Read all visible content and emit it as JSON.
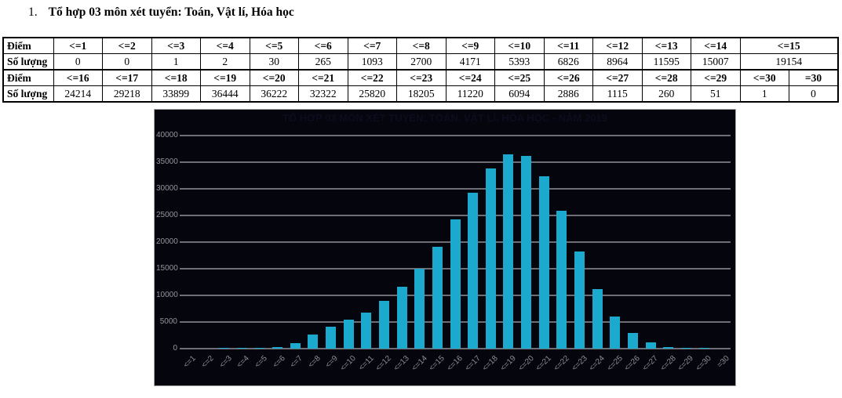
{
  "page": {
    "heading_number": "1.",
    "heading_text": "Tổ hợp 03 môn xét tuyển: Toán, Vật lí, Hóa học"
  },
  "table": {
    "rows": [
      {
        "cells": [
          {
            "text": "Điểm",
            "label": true
          },
          {
            "text": "<=1",
            "header": true
          },
          {
            "text": "<=2",
            "header": true
          },
          {
            "text": "<=3",
            "header": true
          },
          {
            "text": "<=4",
            "header": true
          },
          {
            "text": "<=5",
            "header": true
          },
          {
            "text": "<=6",
            "header": true
          },
          {
            "text": "<=7",
            "header": true
          },
          {
            "text": "<=8",
            "header": true
          },
          {
            "text": "<=9",
            "header": true
          },
          {
            "text": "<=10",
            "header": true
          },
          {
            "text": "<=11",
            "header": true
          },
          {
            "text": "<=12",
            "header": true
          },
          {
            "text": "<=13",
            "header": true
          },
          {
            "text": "<=14",
            "header": true
          },
          {
            "text": "<=15",
            "header": true,
            "colspan": 2
          }
        ]
      },
      {
        "cells": [
          {
            "text": "Số lượng",
            "label": true
          },
          {
            "text": "0"
          },
          {
            "text": "0"
          },
          {
            "text": "1"
          },
          {
            "text": "2"
          },
          {
            "text": "30"
          },
          {
            "text": "265"
          },
          {
            "text": "1093"
          },
          {
            "text": "2700"
          },
          {
            "text": "4171"
          },
          {
            "text": "5393"
          },
          {
            "text": "6826"
          },
          {
            "text": "8964"
          },
          {
            "text": "11595"
          },
          {
            "text": "15007"
          },
          {
            "text": "19154",
            "colspan": 2
          }
        ]
      },
      {
        "cells": [
          {
            "text": "Điểm",
            "label": true
          },
          {
            "text": "<=16",
            "header": true
          },
          {
            "text": "<=17",
            "header": true
          },
          {
            "text": "<=18",
            "header": true
          },
          {
            "text": "<=19",
            "header": true
          },
          {
            "text": "<=20",
            "header": true
          },
          {
            "text": "<=21",
            "header": true
          },
          {
            "text": "<=22",
            "header": true
          },
          {
            "text": "<=23",
            "header": true
          },
          {
            "text": "<=24",
            "header": true
          },
          {
            "text": "<=25",
            "header": true
          },
          {
            "text": "<=26",
            "header": true
          },
          {
            "text": "<=27",
            "header": true
          },
          {
            "text": "<=28",
            "header": true
          },
          {
            "text": "<=29",
            "header": true
          },
          {
            "text": "<=30",
            "header": true
          },
          {
            "text": "=30",
            "header": true
          }
        ]
      },
      {
        "cells": [
          {
            "text": "Số lượng",
            "label": true
          },
          {
            "text": "24214"
          },
          {
            "text": "29218"
          },
          {
            "text": "33899"
          },
          {
            "text": "36444"
          },
          {
            "text": "36222"
          },
          {
            "text": "32322"
          },
          {
            "text": "25820"
          },
          {
            "text": "18205"
          },
          {
            "text": "11220"
          },
          {
            "text": "6094"
          },
          {
            "text": "2886"
          },
          {
            "text": "1115"
          },
          {
            "text": "260"
          },
          {
            "text": "51"
          },
          {
            "text": "1"
          },
          {
            "text": "0"
          }
        ]
      }
    ]
  },
  "chart_data": {
    "type": "bar",
    "title": "TỔ HỢP 03 MÔN XÉT TUYỂN: TOÁN, VẬT LÍ, HÓA HỌC - NĂM 2019",
    "categories": [
      "<=1",
      "<=2",
      "<=3",
      "<=4",
      "<=5",
      "<=6",
      "<=7",
      "<=8",
      "<=9",
      "<=10",
      "<=11",
      "<=12",
      "<=13",
      "<=14",
      "<=15",
      "<=16",
      "<=17",
      "<=18",
      "<=19",
      "<=20",
      "<=21",
      "<=22",
      "<=23",
      "<=24",
      "<=25",
      "<=26",
      "<=27",
      "<=28",
      "<=29",
      "<=30",
      "=30"
    ],
    "values": [
      0,
      0,
      1,
      2,
      30,
      265,
      1093,
      2700,
      4171,
      5393,
      6826,
      8964,
      11595,
      15007,
      19154,
      24214,
      29218,
      33899,
      36444,
      36222,
      32322,
      25820,
      18205,
      11220,
      6094,
      2886,
      1115,
      260,
      51,
      1,
      0
    ],
    "xlabel": "",
    "ylabel": "",
    "ylim": [
      0,
      40000
    ],
    "y_ticks": [
      0,
      5000,
      10000,
      15000,
      20000,
      25000,
      30000,
      35000,
      40000
    ],
    "grid": true,
    "legend": "none",
    "bar_color": "#1baace",
    "background_color": "#05050e",
    "grid_color": "#6e6e76",
    "tick_color": "#95959d",
    "title_color": "#0c0c1e"
  }
}
